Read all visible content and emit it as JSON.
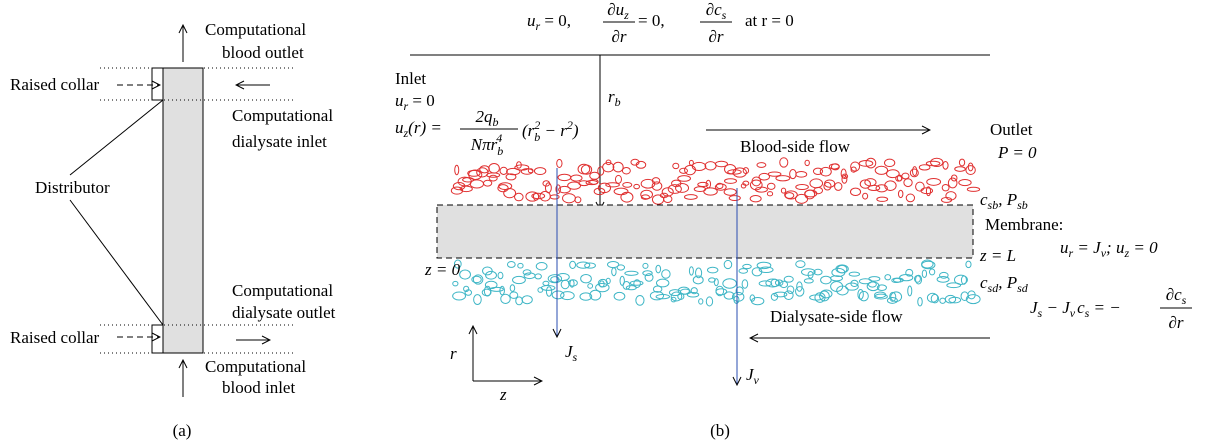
{
  "panel_a": {
    "blood_outlet": [
      "Computational",
      "blood outlet"
    ],
    "raised_collar_top": "Raised collar",
    "dialysate_inlet": [
      "Computational",
      "dialysate inlet"
    ],
    "distributor": "Distributor",
    "dialysate_outlet": [
      "Computational",
      "dialysate outlet"
    ],
    "raised_collar_bottom": "Raised collar",
    "blood_inlet": [
      "Computational",
      "blood inlet"
    ],
    "caption": "(a)"
  },
  "panel_b": {
    "axis_condition": {
      "u": "u",
      "u_sub": "r",
      "eq1": " = 0,",
      "frac1_num": "∂u",
      "frac1_num_sub": "z",
      "frac1_den": "∂r",
      "eq2": " = 0,",
      "frac2_num": "∂c",
      "frac2_num_sub": "s",
      "frac2_den": "∂r",
      "tail": "at r = 0"
    },
    "inlet": {
      "title": "Inlet",
      "ur": [
        "u",
        "r",
        " = 0"
      ],
      "uz_lhs": [
        "u",
        "z",
        "(r) ="
      ],
      "frac_num": [
        "2q",
        "b"
      ],
      "frac_den": [
        "Nπr",
        "b",
        "4"
      ],
      "tail": [
        "(r",
        "b",
        "2",
        " − r",
        "2",
        ")"
      ]
    },
    "radius_label": [
      "r",
      "b"
    ],
    "blood_flow": "Blood-side flow",
    "outlet": {
      "title": "Outlet",
      "condition": "P = 0"
    },
    "blood_concentration": [
      "c",
      "sb",
      ", P",
      "sb"
    ],
    "membrane_title": "Membrane:",
    "membrane_velocity": [
      "u",
      "r",
      " = J",
      "v",
      "; u",
      "z",
      " = 0"
    ],
    "z_end": "z = L",
    "z_start": "z = 0",
    "dialysate_concentration": [
      "c",
      "sd",
      ", P",
      "sd"
    ],
    "membrane_flux": {
      "lhs": [
        "J",
        "s",
        " − J",
        "v",
        "c",
        "s",
        " = −"
      ],
      "frac_num": [
        "∂c",
        "s"
      ],
      "frac_den": "∂r"
    },
    "dialysate_flow": "Dialysate-side flow",
    "solute_flux": [
      "J",
      "s"
    ],
    "volume_flux": [
      "J",
      "v"
    ],
    "axis_r": "r",
    "axis_z": "z",
    "caption": "(b)"
  }
}
